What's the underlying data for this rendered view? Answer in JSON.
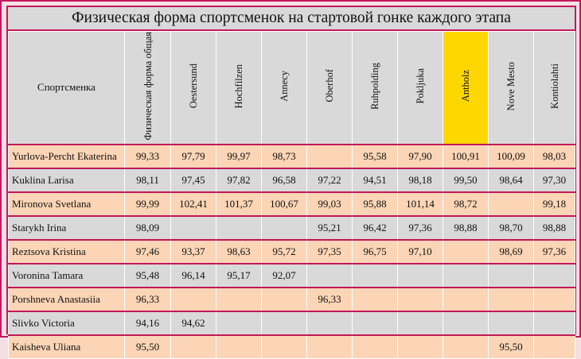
{
  "title": "Физическая форма спортсменок на стартовой гонке каждого этапа",
  "columns": {
    "athlete": "Спортсменка",
    "overall": "Физическая форма общая",
    "stages": [
      "Oestersund",
      "Hochfilzen",
      "Annecy",
      "Oberhof",
      "Ruhpolding",
      "Pokljuka",
      "Antholz",
      "Nove Mesto",
      "Kontiolahti"
    ],
    "highlighted_stage": "Antholz"
  },
  "colors": {
    "border": "#c2185b",
    "highlight": "#ffd700",
    "row_peach": "#fbd5b5",
    "row_grey": "#d9d9d9"
  },
  "rows": [
    {
      "name": "Yurlova-Percht Ekaterina",
      "overall": "99,33",
      "values": [
        "97,79",
        "99,97",
        "98,73",
        "",
        "95,58",
        "97,90",
        "100,91",
        "100,09",
        "98,03"
      ]
    },
    {
      "name": "Kuklina Larisa",
      "overall": "98,11",
      "values": [
        "97,45",
        "97,82",
        "96,58",
        "97,22",
        "94,51",
        "98,18",
        "99,50",
        "98,64",
        "97,30"
      ]
    },
    {
      "name": "Mironova Svetlana",
      "overall": "99,99",
      "values": [
        "102,41",
        "101,37",
        "100,67",
        "99,03",
        "95,88",
        "101,14",
        "98,72",
        "",
        "99,18"
      ]
    },
    {
      "name": "Starykh Irina",
      "overall": "98,09",
      "values": [
        "",
        "",
        "",
        "95,21",
        "96,42",
        "97,36",
        "98,88",
        "98,70",
        "98,88"
      ]
    },
    {
      "name": "Reztsova Kristina",
      "overall": "97,46",
      "values": [
        "93,37",
        "98,63",
        "95,72",
        "97,35",
        "96,75",
        "97,10",
        "",
        "98,69",
        "97,36"
      ]
    },
    {
      "name": "Voronina Tamara",
      "overall": "95,48",
      "values": [
        "96,14",
        "95,17",
        "92,07",
        "",
        "",
        "",
        "",
        "",
        ""
      ]
    },
    {
      "name": "Porshneva Anastasiia",
      "overall": "96,33",
      "values": [
        "",
        "",
        "",
        "96,33",
        "",
        "",
        "",
        "",
        ""
      ]
    },
    {
      "name": "Slivko Victoria",
      "overall": "94,16",
      "values": [
        "94,62",
        "",
        "",
        "",
        "",
        "",
        "",
        "",
        ""
      ]
    },
    {
      "name": "Kaisheva Uliana",
      "overall": "95,50",
      "values": [
        "",
        "",
        "",
        "",
        "",
        "",
        "",
        "95,50",
        ""
      ]
    }
  ]
}
